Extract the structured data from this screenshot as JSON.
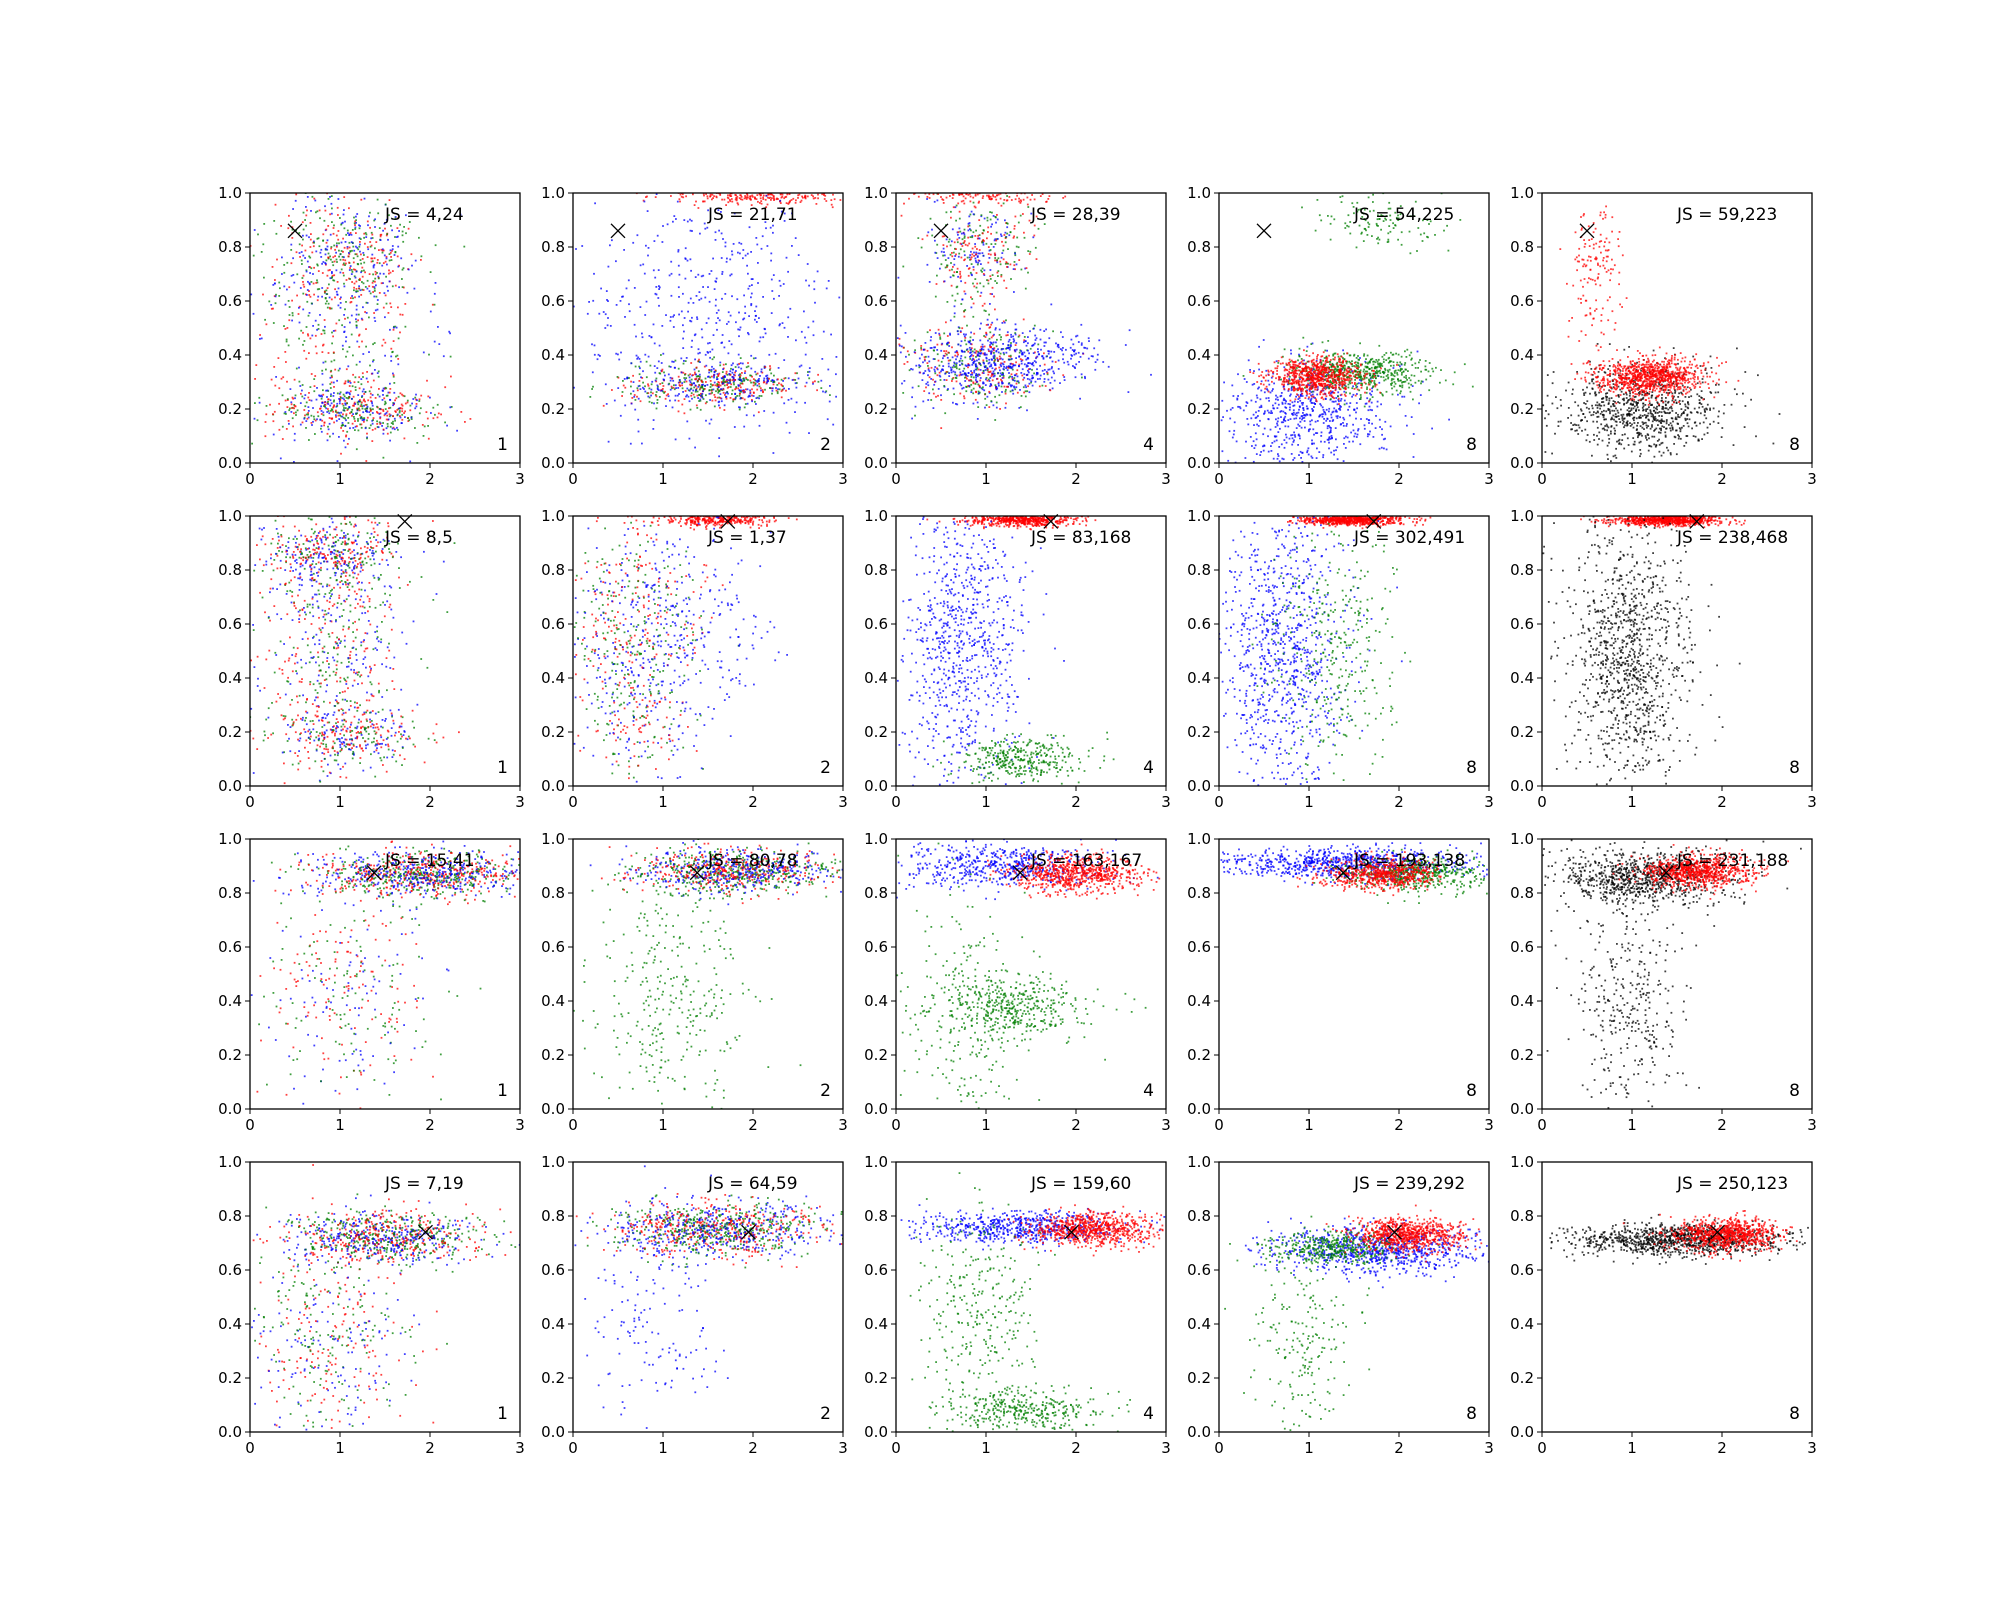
{
  "figure": {
    "colors": {
      "blue": "#0000ff",
      "green": "#007f00",
      "red": "#ff0000",
      "black": "#000000"
    },
    "x_ticks": [
      "0",
      "1",
      "2",
      "3"
    ],
    "y_ticks": [
      "0.0",
      "0.2",
      "0.4",
      "0.6",
      "0.8",
      "1.0"
    ]
  },
  "chart_data": [
    {
      "type": "scatter",
      "row": 0,
      "col": 0,
      "js_label": "JS = 4,24",
      "k_label": "1",
      "marker": [
        0.5,
        0.86
      ],
      "xlim": [
        0,
        3
      ],
      "ylim": [
        0,
        1
      ],
      "clusters": [
        {
          "color": "mixed",
          "cx": 1.2,
          "cy": 0.2,
          "sx": 0.45,
          "sy": 0.05,
          "n": 520
        },
        {
          "color": "mixed",
          "cx": 1.1,
          "cy": 0.75,
          "sx": 0.4,
          "sy": 0.12,
          "n": 480
        },
        {
          "color": "mixed",
          "cx": 0.9,
          "cy": 0.5,
          "sx": 0.5,
          "sy": 0.25,
          "n": 450
        }
      ]
    },
    {
      "type": "scatter",
      "row": 0,
      "col": 1,
      "js_label": "JS = 21,71",
      "k_label": "2",
      "marker": [
        0.5,
        0.86
      ],
      "xlim": [
        0,
        3
      ],
      "ylim": [
        0,
        1
      ],
      "clusters": [
        {
          "color": "mixed",
          "cx": 1.6,
          "cy": 0.29,
          "sx": 0.55,
          "sy": 0.04,
          "n": 650
        },
        {
          "color": "red",
          "cx": 2.0,
          "cy": 0.99,
          "sx": 0.5,
          "sy": 0.015,
          "n": 260
        },
        {
          "color": "blue",
          "cx": 1.5,
          "cy": 0.55,
          "sx": 0.7,
          "sy": 0.25,
          "n": 500
        }
      ]
    },
    {
      "type": "scatter",
      "row": 0,
      "col": 2,
      "js_label": "JS = 28,39",
      "k_label": "4",
      "marker": [
        0.5,
        0.86
      ],
      "xlim": [
        0,
        3
      ],
      "ylim": [
        0,
        1
      ],
      "clusters": [
        {
          "color": "mixed",
          "cx": 0.9,
          "cy": 0.36,
          "sx": 0.4,
          "sy": 0.08,
          "n": 600
        },
        {
          "color": "blue",
          "cx": 1.3,
          "cy": 0.38,
          "sx": 0.5,
          "sy": 0.06,
          "n": 400
        },
        {
          "color": "mixed",
          "cx": 0.9,
          "cy": 0.78,
          "sx": 0.3,
          "sy": 0.1,
          "n": 400
        },
        {
          "color": "red",
          "cx": 1.0,
          "cy": 0.99,
          "sx": 0.4,
          "sy": 0.015,
          "n": 120
        }
      ]
    },
    {
      "type": "scatter",
      "row": 0,
      "col": 3,
      "js_label": "JS = 54,225",
      "k_label": "8",
      "marker": [
        0.5,
        0.86
      ],
      "xlim": [
        0,
        3
      ],
      "ylim": [
        0,
        1
      ],
      "clusters": [
        {
          "color": "blue",
          "cx": 1.0,
          "cy": 0.18,
          "sx": 0.45,
          "sy": 0.1,
          "n": 650
        },
        {
          "color": "green",
          "cx": 1.6,
          "cy": 0.34,
          "sx": 0.4,
          "sy": 0.04,
          "n": 550
        },
        {
          "color": "red",
          "cx": 1.1,
          "cy": 0.32,
          "sx": 0.25,
          "sy": 0.035,
          "n": 700
        },
        {
          "color": "green",
          "cx": 1.8,
          "cy": 0.9,
          "sx": 0.35,
          "sy": 0.05,
          "n": 120
        }
      ]
    },
    {
      "type": "scatter",
      "row": 0,
      "col": 4,
      "js_label": "JS = 59,223",
      "k_label": "8",
      "marker": [
        0.5,
        0.86
      ],
      "xlim": [
        0,
        3
      ],
      "ylim": [
        0,
        1
      ],
      "clusters": [
        {
          "color": "black",
          "cx": 1.1,
          "cy": 0.2,
          "sx": 0.45,
          "sy": 0.08,
          "n": 800
        },
        {
          "color": "red",
          "cx": 1.2,
          "cy": 0.32,
          "sx": 0.3,
          "sy": 0.035,
          "n": 900
        },
        {
          "color": "red",
          "cx": 0.6,
          "cy": 0.7,
          "sx": 0.15,
          "sy": 0.15,
          "n": 150
        }
      ]
    },
    {
      "type": "scatter",
      "row": 1,
      "col": 0,
      "js_label": "JS = 8,5",
      "k_label": "1",
      "marker": [
        1.72,
        0.98
      ],
      "xlim": [
        0,
        3
      ],
      "ylim": [
        0,
        1
      ],
      "clusters": [
        {
          "color": "mixed",
          "cx": 0.9,
          "cy": 0.85,
          "sx": 0.4,
          "sy": 0.08,
          "n": 550
        },
        {
          "color": "mixed",
          "cx": 0.9,
          "cy": 0.45,
          "sx": 0.4,
          "sy": 0.25,
          "n": 600
        },
        {
          "color": "mixed",
          "cx": 1.1,
          "cy": 0.18,
          "sx": 0.4,
          "sy": 0.05,
          "n": 300
        }
      ]
    },
    {
      "type": "scatter",
      "row": 1,
      "col": 1,
      "js_label": "JS = 1,37",
      "k_label": "2",
      "marker": [
        1.72,
        0.98
      ],
      "xlim": [
        0,
        3
      ],
      "ylim": [
        0,
        1
      ],
      "clusters": [
        {
          "color": "red",
          "cx": 1.6,
          "cy": 0.985,
          "sx": 0.3,
          "sy": 0.012,
          "n": 300
        },
        {
          "color": "mixed",
          "cx": 0.7,
          "cy": 0.5,
          "sx": 0.35,
          "sy": 0.28,
          "n": 800
        },
        {
          "color": "blue",
          "cx": 1.4,
          "cy": 0.6,
          "sx": 0.4,
          "sy": 0.2,
          "n": 200
        }
      ]
    },
    {
      "type": "scatter",
      "row": 1,
      "col": 2,
      "js_label": "JS = 83,168",
      "k_label": "4",
      "marker": [
        1.72,
        0.98
      ],
      "xlim": [
        0,
        3
      ],
      "ylim": [
        0,
        1
      ],
      "clusters": [
        {
          "color": "red",
          "cx": 1.4,
          "cy": 0.985,
          "sx": 0.3,
          "sy": 0.012,
          "n": 550
        },
        {
          "color": "blue",
          "cx": 0.75,
          "cy": 0.55,
          "sx": 0.35,
          "sy": 0.28,
          "n": 800
        },
        {
          "color": "green",
          "cx": 1.4,
          "cy": 0.1,
          "sx": 0.35,
          "sy": 0.04,
          "n": 350
        }
      ]
    },
    {
      "type": "scatter",
      "row": 1,
      "col": 3,
      "js_label": "JS = 302,491",
      "k_label": "8",
      "marker": [
        1.72,
        0.98
      ],
      "xlim": [
        0,
        3
      ],
      "ylim": [
        0,
        1
      ],
      "clusters": [
        {
          "color": "red",
          "cx": 1.45,
          "cy": 0.985,
          "sx": 0.28,
          "sy": 0.01,
          "n": 700
        },
        {
          "color": "blue",
          "cx": 0.7,
          "cy": 0.5,
          "sx": 0.35,
          "sy": 0.28,
          "n": 900
        },
        {
          "color": "green",
          "cx": 1.3,
          "cy": 0.5,
          "sx": 0.35,
          "sy": 0.25,
          "n": 350
        }
      ]
    },
    {
      "type": "scatter",
      "row": 1,
      "col": 4,
      "js_label": "JS = 238,468",
      "k_label": "8",
      "marker": [
        1.72,
        0.98
      ],
      "xlim": [
        0,
        3
      ],
      "ylim": [
        0,
        1
      ],
      "clusters": [
        {
          "color": "red",
          "cx": 1.4,
          "cy": 0.985,
          "sx": 0.3,
          "sy": 0.01,
          "n": 800
        },
        {
          "color": "black",
          "cx": 0.95,
          "cy": 0.5,
          "sx": 0.35,
          "sy": 0.25,
          "n": 1100
        }
      ]
    },
    {
      "type": "scatter",
      "row": 2,
      "col": 0,
      "js_label": "JS = 15,41",
      "k_label": "1",
      "marker": [
        1.38,
        0.875
      ],
      "xlim": [
        0,
        3
      ],
      "ylim": [
        0,
        1
      ],
      "clusters": [
        {
          "color": "mixed",
          "cx": 1.9,
          "cy": 0.87,
          "sx": 0.6,
          "sy": 0.04,
          "n": 1100
        },
        {
          "color": "mixed",
          "cx": 1.1,
          "cy": 0.45,
          "sx": 0.5,
          "sy": 0.25,
          "n": 400
        }
      ]
    },
    {
      "type": "scatter",
      "row": 2,
      "col": 1,
      "js_label": "JS = 80,78",
      "k_label": "2",
      "marker": [
        1.38,
        0.875
      ],
      "xlim": [
        0,
        3
      ],
      "ylim": [
        0,
        1
      ],
      "clusters": [
        {
          "color": "mixed",
          "cx": 1.8,
          "cy": 0.88,
          "sx": 0.55,
          "sy": 0.04,
          "n": 1100
        },
        {
          "color": "green",
          "cx": 1.1,
          "cy": 0.45,
          "sx": 0.45,
          "sy": 0.25,
          "n": 350
        }
      ]
    },
    {
      "type": "scatter",
      "row": 2,
      "col": 2,
      "js_label": "JS = 163,167",
      "k_label": "4",
      "marker": [
        1.38,
        0.875
      ],
      "xlim": [
        0,
        3
      ],
      "ylim": [
        0,
        1
      ],
      "clusters": [
        {
          "color": "blue",
          "cx": 1.2,
          "cy": 0.9,
          "sx": 0.55,
          "sy": 0.04,
          "n": 550
        },
        {
          "color": "red",
          "cx": 2.0,
          "cy": 0.87,
          "sx": 0.35,
          "sy": 0.035,
          "n": 700
        },
        {
          "color": "green",
          "cx": 1.3,
          "cy": 0.38,
          "sx": 0.4,
          "sy": 0.06,
          "n": 400
        },
        {
          "color": "green",
          "cx": 0.8,
          "cy": 0.3,
          "sx": 0.35,
          "sy": 0.25,
          "n": 250
        }
      ]
    },
    {
      "type": "scatter",
      "row": 2,
      "col": 3,
      "js_label": "JS = 193,138",
      "k_label": "8",
      "marker": [
        1.38,
        0.875
      ],
      "xlim": [
        0,
        3
      ],
      "ylim": [
        0,
        1
      ],
      "clusters": [
        {
          "color": "blue",
          "cx": 1.4,
          "cy": 0.91,
          "sx": 0.7,
          "sy": 0.03,
          "n": 800
        },
        {
          "color": "green",
          "cx": 2.2,
          "cy": 0.87,
          "sx": 0.4,
          "sy": 0.03,
          "n": 500
        },
        {
          "color": "red",
          "cx": 1.8,
          "cy": 0.87,
          "sx": 0.3,
          "sy": 0.03,
          "n": 600
        }
      ]
    },
    {
      "type": "scatter",
      "row": 2,
      "col": 4,
      "js_label": "JS = 231,188",
      "k_label": "8",
      "marker": [
        1.38,
        0.875
      ],
      "xlim": [
        0,
        3
      ],
      "ylim": [
        0,
        1
      ],
      "clusters": [
        {
          "color": "black",
          "cx": 1.1,
          "cy": 0.86,
          "sx": 0.5,
          "sy": 0.05,
          "n": 900
        },
        {
          "color": "black",
          "cx": 0.95,
          "cy": 0.4,
          "sx": 0.3,
          "sy": 0.2,
          "n": 350
        },
        {
          "color": "red",
          "cx": 1.75,
          "cy": 0.88,
          "sx": 0.3,
          "sy": 0.03,
          "n": 800
        }
      ]
    },
    {
      "type": "scatter",
      "row": 3,
      "col": 0,
      "js_label": "JS = 7,19",
      "k_label": "1",
      "marker": [
        1.95,
        0.74
      ],
      "xlim": [
        0,
        3
      ],
      "ylim": [
        0,
        1
      ],
      "clusters": [
        {
          "color": "mixed",
          "cx": 1.5,
          "cy": 0.72,
          "sx": 0.55,
          "sy": 0.05,
          "n": 950
        },
        {
          "color": "mixed",
          "cx": 0.9,
          "cy": 0.35,
          "sx": 0.45,
          "sy": 0.22,
          "n": 500
        }
      ]
    },
    {
      "type": "scatter",
      "row": 3,
      "col": 1,
      "js_label": "JS = 64,59",
      "k_label": "2",
      "marker": [
        1.95,
        0.74
      ],
      "xlim": [
        0,
        3
      ],
      "ylim": [
        0,
        1
      ],
      "clusters": [
        {
          "color": "mixed",
          "cx": 1.6,
          "cy": 0.75,
          "sx": 0.6,
          "sy": 0.05,
          "n": 1200
        },
        {
          "color": "blue",
          "cx": 0.9,
          "cy": 0.45,
          "sx": 0.4,
          "sy": 0.2,
          "n": 150
        }
      ]
    },
    {
      "type": "scatter",
      "row": 3,
      "col": 2,
      "js_label": "JS = 159,60",
      "k_label": "4",
      "marker": [
        1.95,
        0.74
      ],
      "xlim": [
        0,
        3
      ],
      "ylim": [
        0,
        1
      ],
      "clusters": [
        {
          "color": "blue",
          "cx": 1.4,
          "cy": 0.76,
          "sx": 0.55,
          "sy": 0.03,
          "n": 600
        },
        {
          "color": "red",
          "cx": 2.2,
          "cy": 0.75,
          "sx": 0.35,
          "sy": 0.03,
          "n": 700
        },
        {
          "color": "green",
          "cx": 1.4,
          "cy": 0.08,
          "sx": 0.45,
          "sy": 0.04,
          "n": 350
        },
        {
          "color": "green",
          "cx": 0.9,
          "cy": 0.45,
          "sx": 0.35,
          "sy": 0.2,
          "n": 300
        }
      ]
    },
    {
      "type": "scatter",
      "row": 3,
      "col": 3,
      "js_label": "JS = 239,292",
      "k_label": "8",
      "marker": [
        1.95,
        0.74
      ],
      "xlim": [
        0,
        3
      ],
      "ylim": [
        0,
        1
      ],
      "clusters": [
        {
          "color": "blue",
          "cx": 1.8,
          "cy": 0.67,
          "sx": 0.6,
          "sy": 0.04,
          "n": 800
        },
        {
          "color": "green",
          "cx": 1.3,
          "cy": 0.68,
          "sx": 0.35,
          "sy": 0.03,
          "n": 400
        },
        {
          "color": "green",
          "cx": 0.9,
          "cy": 0.3,
          "sx": 0.3,
          "sy": 0.2,
          "n": 200
        },
        {
          "color": "red",
          "cx": 2.1,
          "cy": 0.73,
          "sx": 0.3,
          "sy": 0.03,
          "n": 750
        }
      ]
    },
    {
      "type": "scatter",
      "row": 3,
      "col": 4,
      "js_label": "JS = 250,123",
      "k_label": "8",
      "marker": [
        1.95,
        0.74
      ],
      "xlim": [
        0,
        3
      ],
      "ylim": [
        0,
        1
      ],
      "clusters": [
        {
          "color": "black",
          "cx": 1.5,
          "cy": 0.71,
          "sx": 0.6,
          "sy": 0.03,
          "n": 1000
        },
        {
          "color": "red",
          "cx": 2.05,
          "cy": 0.73,
          "sx": 0.3,
          "sy": 0.03,
          "n": 800
        }
      ]
    }
  ]
}
